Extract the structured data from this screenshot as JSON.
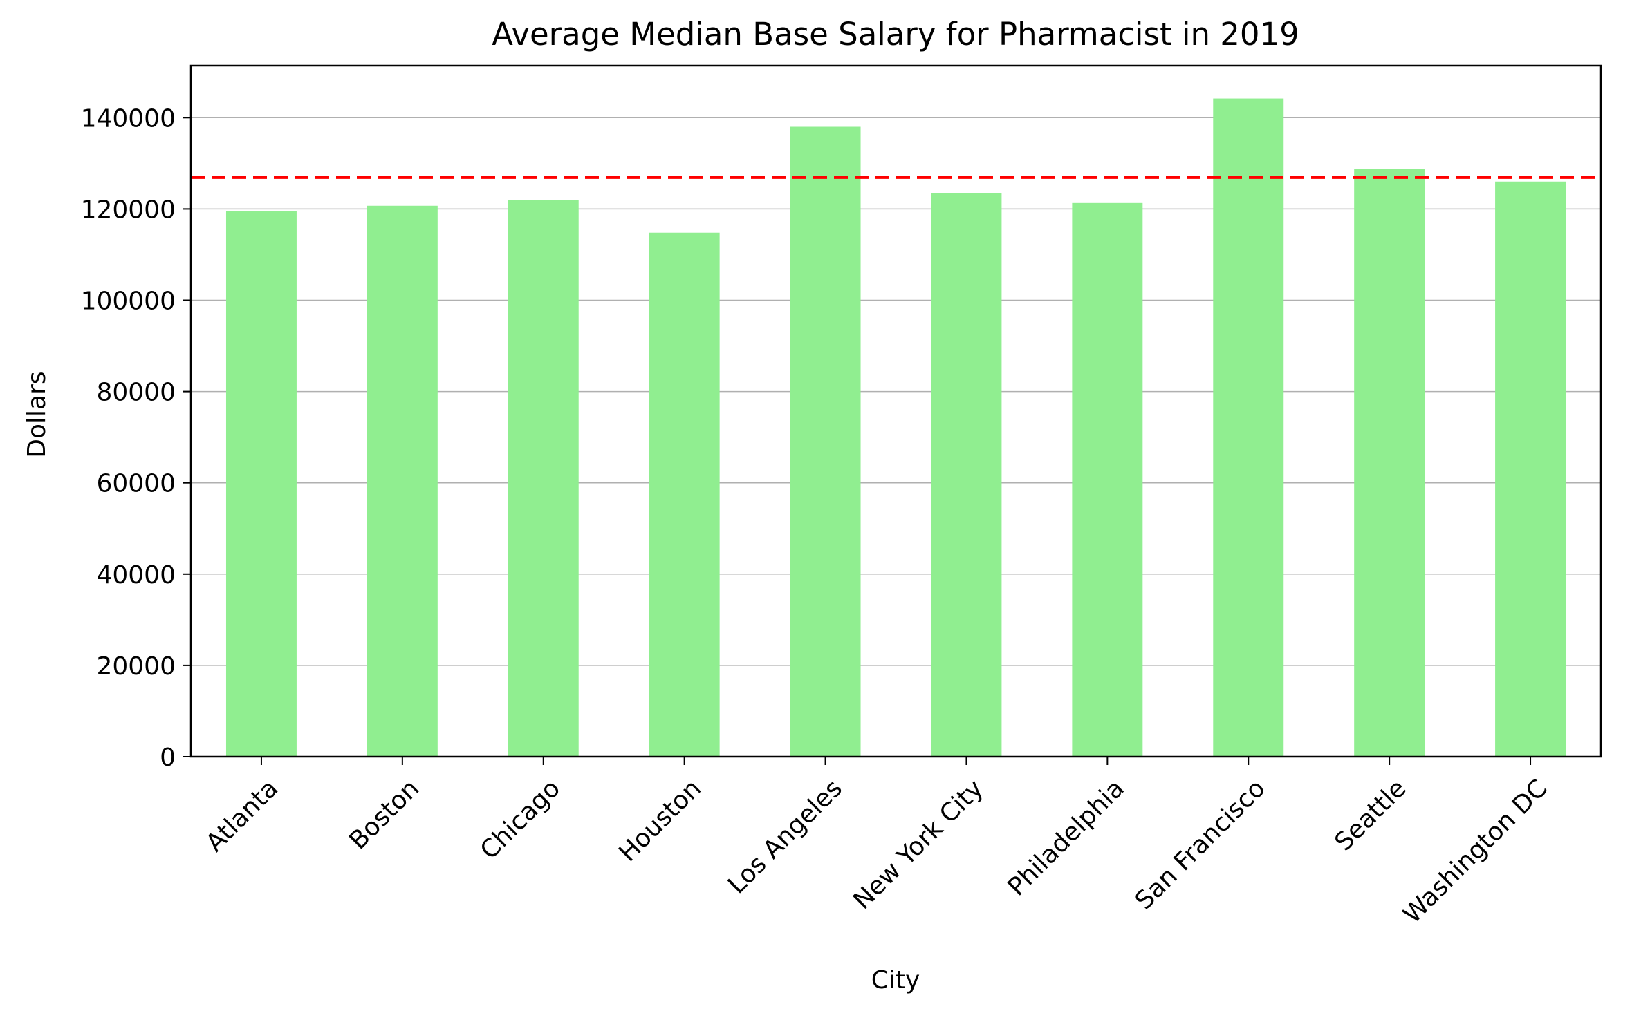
{
  "chart_data": {
    "type": "bar",
    "title": "Average Median Base Salary for Pharmacist in 2019",
    "xlabel": "City",
    "ylabel": "Dollars",
    "categories": [
      "Atlanta",
      "Boston",
      "Chicago",
      "Houston",
      "Los Angeles",
      "New York City",
      "Philadelphia",
      "San Francisco",
      "Seattle",
      "Washington DC"
    ],
    "values": [
      119500,
      120700,
      122000,
      114800,
      138000,
      123500,
      121300,
      144200,
      128700,
      126000
    ],
    "yticks": [
      0,
      20000,
      40000,
      60000,
      80000,
      100000,
      120000,
      140000
    ],
    "ytick_labels": [
      "0",
      "20000",
      "40000",
      "60000",
      "80000",
      "100000",
      "120000",
      "140000"
    ],
    "ylim": [
      0,
      151400
    ],
    "average_line": 126900,
    "grid": "y",
    "legend": "none",
    "colors": {
      "bar": "#90ee90",
      "average_line": "#ff0000",
      "grid": "#b0b0b0",
      "axis": "#000000"
    }
  }
}
